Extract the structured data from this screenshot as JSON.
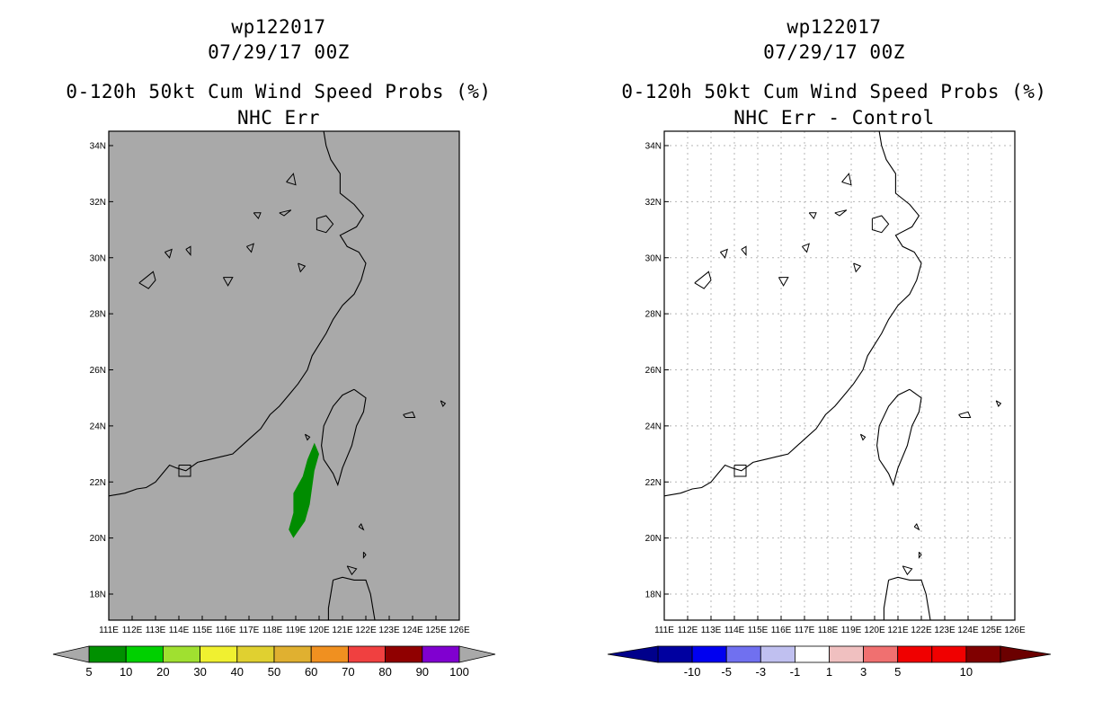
{
  "left": {
    "storm": "wp122017",
    "datetime": "07/29/17 00Z",
    "title": "0-120h 50kt Cum Wind Speed Probs (%)",
    "subtitle": "NHC Err",
    "colorbar_labels": [
      "5",
      "10",
      "20",
      "30",
      "40",
      "50",
      "60",
      "70",
      "80",
      "90",
      "100"
    ],
    "colorbar_colors": [
      "#009000",
      "#00d000",
      "#a0e030",
      "#f0f030",
      "#e0d030",
      "#e0b030",
      "#f09020",
      "#f04040",
      "#900000",
      "#8000d0"
    ],
    "background": "#a9a9a9",
    "probability_area_color": "#008c00"
  },
  "right": {
    "storm": "wp122017",
    "datetime": "07/29/17 00Z",
    "title": "0-120h 50kt Cum Wind Speed Probs (%)",
    "subtitle": "NHC Err - Control",
    "colorbar_labels": [
      "-10",
      "-5",
      "-3",
      "-1",
      "1",
      "3",
      "5",
      "10"
    ],
    "colorbar_colors": [
      "#0000a0",
      "#0000f0",
      "#7070f0",
      "#c0c0f0",
      "#ffffff",
      "#f0c0c0",
      "#f07070",
      "#f00000",
      "#f00000",
      "#800000"
    ],
    "background": "#ffffff"
  },
  "map": {
    "lat_labels": [
      "34N",
      "32N",
      "30N",
      "28N",
      "26N",
      "24N",
      "22N",
      "20N",
      "18N"
    ],
    "lon_labels": [
      "111E",
      "112E",
      "113E",
      "114E",
      "115E",
      "116E",
      "117E",
      "118E",
      "119E",
      "120E",
      "121E",
      "122E",
      "123E",
      "124E",
      "125E",
      "126E"
    ],
    "lat_range": [
      17,
      34.5
    ],
    "lon_range": [
      111,
      126
    ]
  },
  "chart_data": {
    "type": "heatmap",
    "left_panel": {
      "region": "probability 5-10% area east of Taiwan Strait",
      "polygon_lonlat": [
        [
          119.8,
          23.4
        ],
        [
          120.0,
          23.0
        ],
        [
          119.8,
          22.4
        ],
        [
          119.7,
          21.8
        ],
        [
          119.6,
          21.2
        ],
        [
          119.4,
          20.6
        ],
        [
          118.9,
          20.0
        ],
        [
          118.7,
          20.3
        ],
        [
          118.9,
          20.9
        ],
        [
          118.9,
          21.6
        ],
        [
          119.3,
          22.2
        ],
        [
          119.5,
          22.8
        ],
        [
          119.8,
          23.4
        ]
      ],
      "value_range": "5-10"
    },
    "right_panel": {
      "difference_range": "-1 to 1"
    }
  }
}
